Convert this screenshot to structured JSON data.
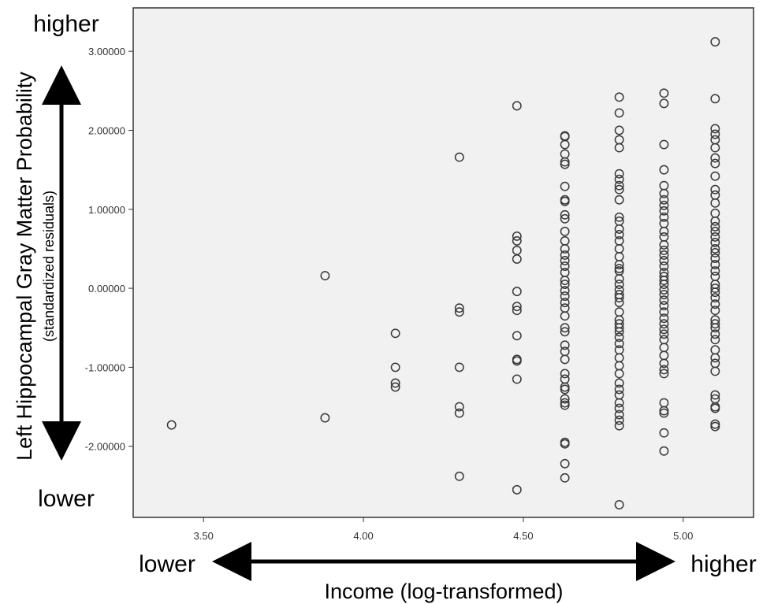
{
  "chart_data": {
    "type": "scatter",
    "title": "",
    "xlabel": "Income (log-transformed)",
    "ylabel": "Left Hippocampal Gray Matter Probability",
    "ylabel_sub": "(standardized residuals)",
    "x_arrow_low": "lower",
    "x_arrow_high": "higher",
    "y_arrow_low": "lower",
    "y_arrow_high": "higher",
    "xlim": [
      3.28,
      5.22
    ],
    "ylim": [
      -2.9,
      3.55
    ],
    "x_ticks": [
      "3.50",
      "4.00",
      "4.50",
      "5.00"
    ],
    "x_tick_values": [
      3.5,
      4.0,
      4.5,
      5.0
    ],
    "y_ticks": [
      "3.00000",
      "2.00000",
      "1.00000",
      "0.00000",
      "-1.00000",
      "-2.00000"
    ],
    "y_tick_values": [
      3,
      2,
      1,
      0,
      -1,
      -2
    ],
    "grid": false,
    "marker": "open-circle",
    "plot_background": "#f1f1f1",
    "series": [
      {
        "points": [
          [
            3.4,
            -1.73
          ],
          [
            3.88,
            0.16
          ],
          [
            3.88,
            -1.64
          ],
          [
            4.1,
            -0.57
          ],
          [
            4.1,
            -1.0
          ],
          [
            4.1,
            -1.2
          ],
          [
            4.1,
            -1.25
          ],
          [
            4.3,
            1.66
          ],
          [
            4.3,
            -0.25
          ],
          [
            4.3,
            -0.3
          ],
          [
            4.3,
            -1.0
          ],
          [
            4.3,
            -1.5
          ],
          [
            4.3,
            -1.58
          ],
          [
            4.3,
            -2.38
          ],
          [
            4.48,
            2.31
          ],
          [
            4.48,
            0.66
          ],
          [
            4.48,
            0.6
          ],
          [
            4.48,
            0.48
          ],
          [
            4.48,
            0.37
          ],
          [
            4.48,
            -0.04
          ],
          [
            4.48,
            -0.23
          ],
          [
            4.48,
            -0.28
          ],
          [
            4.48,
            -0.6
          ],
          [
            4.48,
            -0.9
          ],
          [
            4.48,
            -0.92
          ],
          [
            4.48,
            -1.15
          ],
          [
            4.48,
            -2.55
          ],
          [
            4.63,
            1.93
          ],
          [
            4.63,
            1.92
          ],
          [
            4.63,
            1.82
          ],
          [
            4.63,
            1.7
          ],
          [
            4.63,
            1.6
          ],
          [
            4.63,
            1.57
          ],
          [
            4.63,
            1.29
          ],
          [
            4.63,
            1.12
          ],
          [
            4.63,
            1.1
          ],
          [
            4.63,
            0.93
          ],
          [
            4.63,
            0.88
          ],
          [
            4.63,
            0.72
          ],
          [
            4.63,
            0.6
          ],
          [
            4.63,
            0.5
          ],
          [
            4.63,
            0.42
          ],
          [
            4.63,
            0.35
          ],
          [
            4.63,
            0.28
          ],
          [
            4.63,
            0.2
          ],
          [
            4.63,
            0.1
          ],
          [
            4.63,
            0.05
          ],
          [
            4.63,
            -0.03
          ],
          [
            4.63,
            -0.1
          ],
          [
            4.63,
            -0.18
          ],
          [
            4.63,
            -0.25
          ],
          [
            4.63,
            -0.35
          ],
          [
            4.63,
            -0.5
          ],
          [
            4.63,
            -0.55
          ],
          [
            4.63,
            -0.72
          ],
          [
            4.63,
            -0.8
          ],
          [
            4.63,
            -0.9
          ],
          [
            4.63,
            -1.08
          ],
          [
            4.63,
            -1.15
          ],
          [
            4.63,
            -1.25
          ],
          [
            4.63,
            -1.28
          ],
          [
            4.63,
            -1.4
          ],
          [
            4.63,
            -1.45
          ],
          [
            4.63,
            -1.48
          ],
          [
            4.63,
            -1.95
          ],
          [
            4.63,
            -1.97
          ],
          [
            4.63,
            -2.22
          ],
          [
            4.63,
            -2.4
          ],
          [
            4.8,
            2.42
          ],
          [
            4.8,
            2.22
          ],
          [
            4.8,
            2.0
          ],
          [
            4.8,
            1.88
          ],
          [
            4.8,
            1.78
          ],
          [
            4.8,
            1.45
          ],
          [
            4.8,
            1.38
          ],
          [
            4.8,
            1.3
          ],
          [
            4.8,
            1.25
          ],
          [
            4.8,
            1.12
          ],
          [
            4.8,
            0.9
          ],
          [
            4.8,
            0.85
          ],
          [
            4.8,
            0.75
          ],
          [
            4.8,
            0.68
          ],
          [
            4.8,
            0.6
          ],
          [
            4.8,
            0.5
          ],
          [
            4.8,
            0.4
          ],
          [
            4.8,
            0.3
          ],
          [
            4.8,
            0.25
          ],
          [
            4.8,
            0.22
          ],
          [
            4.8,
            0.12
          ],
          [
            4.8,
            0.05
          ],
          [
            4.8,
            -0.02
          ],
          [
            4.8,
            -0.08
          ],
          [
            4.8,
            -0.12
          ],
          [
            4.8,
            -0.18
          ],
          [
            4.8,
            -0.3
          ],
          [
            4.8,
            -0.4
          ],
          [
            4.8,
            -0.45
          ],
          [
            4.8,
            -0.5
          ],
          [
            4.8,
            -0.55
          ],
          [
            4.8,
            -0.62
          ],
          [
            4.8,
            -0.7
          ],
          [
            4.8,
            -0.78
          ],
          [
            4.8,
            -0.88
          ],
          [
            4.8,
            -0.98
          ],
          [
            4.8,
            -1.08
          ],
          [
            4.8,
            -1.2
          ],
          [
            4.8,
            -1.28
          ],
          [
            4.8,
            -1.35
          ],
          [
            4.8,
            -1.45
          ],
          [
            4.8,
            -1.52
          ],
          [
            4.8,
            -1.6
          ],
          [
            4.8,
            -1.67
          ],
          [
            4.8,
            -1.74
          ],
          [
            4.8,
            -2.74
          ],
          [
            4.94,
            2.47
          ],
          [
            4.94,
            2.34
          ],
          [
            4.94,
            1.82
          ],
          [
            4.94,
            1.5
          ],
          [
            4.94,
            1.3
          ],
          [
            4.94,
            1.2
          ],
          [
            4.94,
            1.12
          ],
          [
            4.94,
            1.05
          ],
          [
            4.94,
            0.98
          ],
          [
            4.94,
            0.9
          ],
          [
            4.94,
            0.82
          ],
          [
            4.94,
            0.72
          ],
          [
            4.94,
            0.65
          ],
          [
            4.94,
            0.55
          ],
          [
            4.94,
            0.48
          ],
          [
            4.94,
            0.42
          ],
          [
            4.94,
            0.35
          ],
          [
            4.94,
            0.28
          ],
          [
            4.94,
            0.2
          ],
          [
            4.94,
            0.15
          ],
          [
            4.94,
            0.1
          ],
          [
            4.94,
            0.05
          ],
          [
            4.94,
            -0.02
          ],
          [
            4.94,
            -0.08
          ],
          [
            4.94,
            -0.15
          ],
          [
            4.94,
            -0.22
          ],
          [
            4.94,
            -0.3
          ],
          [
            4.94,
            -0.38
          ],
          [
            4.94,
            -0.45
          ],
          [
            4.94,
            -0.52
          ],
          [
            4.94,
            -0.58
          ],
          [
            4.94,
            -0.65
          ],
          [
            4.94,
            -0.75
          ],
          [
            4.94,
            -0.85
          ],
          [
            4.94,
            -0.95
          ],
          [
            4.94,
            -1.03
          ],
          [
            4.94,
            -1.08
          ],
          [
            4.94,
            -1.45
          ],
          [
            4.94,
            -1.55
          ],
          [
            4.94,
            -1.58
          ],
          [
            4.94,
            -1.83
          ],
          [
            4.94,
            -2.06
          ],
          [
            5.1,
            3.12
          ],
          [
            5.1,
            2.4
          ],
          [
            5.1,
            2.02
          ],
          [
            5.1,
            1.95
          ],
          [
            5.1,
            1.88
          ],
          [
            5.1,
            1.78
          ],
          [
            5.1,
            1.65
          ],
          [
            5.1,
            1.58
          ],
          [
            5.1,
            1.42
          ],
          [
            5.1,
            1.25
          ],
          [
            5.1,
            1.18
          ],
          [
            5.1,
            1.08
          ],
          [
            5.1,
            0.95
          ],
          [
            5.1,
            0.85
          ],
          [
            5.1,
            0.78
          ],
          [
            5.1,
            0.72
          ],
          [
            5.1,
            0.65
          ],
          [
            5.1,
            0.58
          ],
          [
            5.1,
            0.5
          ],
          [
            5.1,
            0.45
          ],
          [
            5.1,
            0.38
          ],
          [
            5.1,
            0.3
          ],
          [
            5.1,
            0.22
          ],
          [
            5.1,
            0.15
          ],
          [
            5.1,
            0.05
          ],
          [
            5.1,
            0.0
          ],
          [
            5.1,
            -0.05
          ],
          [
            5.1,
            -0.12
          ],
          [
            5.1,
            -0.2
          ],
          [
            5.1,
            -0.28
          ],
          [
            5.1,
            -0.4
          ],
          [
            5.1,
            -0.45
          ],
          [
            5.1,
            -0.5
          ],
          [
            5.1,
            -0.58
          ],
          [
            5.1,
            -0.65
          ],
          [
            5.1,
            -0.78
          ],
          [
            5.1,
            -0.88
          ],
          [
            5.1,
            -0.95
          ],
          [
            5.1,
            -1.05
          ],
          [
            5.1,
            -1.35
          ],
          [
            5.1,
            -1.4
          ],
          [
            5.1,
            -1.5
          ],
          [
            5.1,
            -1.52
          ],
          [
            5.1,
            -1.72
          ],
          [
            5.1,
            -1.75
          ]
        ]
      }
    ]
  }
}
